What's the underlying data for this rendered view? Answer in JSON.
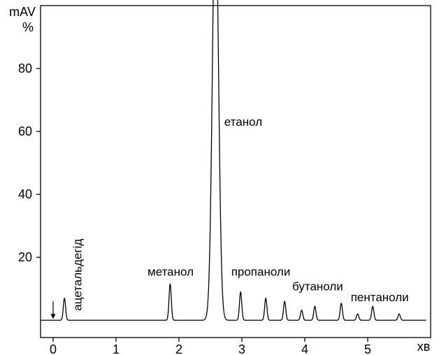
{
  "chart_data": {
    "type": "line",
    "title": "",
    "xlabel": "хв",
    "ylabel": "mAV %",
    "ylabel_lines": [
      "mAV",
      "%"
    ],
    "xlim": [
      -0.2,
      6.0
    ],
    "ylim": [
      -5.5,
      100
    ],
    "xticks": [
      0,
      1,
      2,
      3,
      4,
      5
    ],
    "yticks": [
      20,
      40,
      60,
      80
    ],
    "grid": false,
    "series": [
      {
        "peaks": [
          {
            "x": 0.18,
            "y": 7.0
          },
          {
            "x": 1.86,
            "y": 11.5
          },
          {
            "x": 2.58,
            "y": 135
          },
          {
            "x": 2.98,
            "y": 9.0
          },
          {
            "x": 3.38,
            "y": 7.0
          },
          {
            "x": 3.68,
            "y": 6.0
          },
          {
            "x": 3.95,
            "y": 3.2
          },
          {
            "x": 4.16,
            "y": 4.4
          },
          {
            "x": 4.58,
            "y": 5.4
          },
          {
            "x": 4.84,
            "y": 2.0
          },
          {
            "x": 5.08,
            "y": 4.4
          },
          {
            "x": 5.5,
            "y": 2.0
          }
        ]
      }
    ],
    "annotations": [
      {
        "text": "ацетальдегід",
        "x": 0.45,
        "y": 3,
        "rotate": -90
      },
      {
        "text": "метанол",
        "x": 1.5,
        "y": 14.2
      },
      {
        "text": "етанол",
        "x": 2.72,
        "y": 61.8
      },
      {
        "text": "пропаноли",
        "x": 2.83,
        "y": 14.2
      },
      {
        "text": "бутаноли",
        "x": 3.8,
        "y": 9.5
      },
      {
        "text": "пентаноли",
        "x": 4.73,
        "y": 6.0
      }
    ],
    "injection_marker_x": 0.0
  }
}
